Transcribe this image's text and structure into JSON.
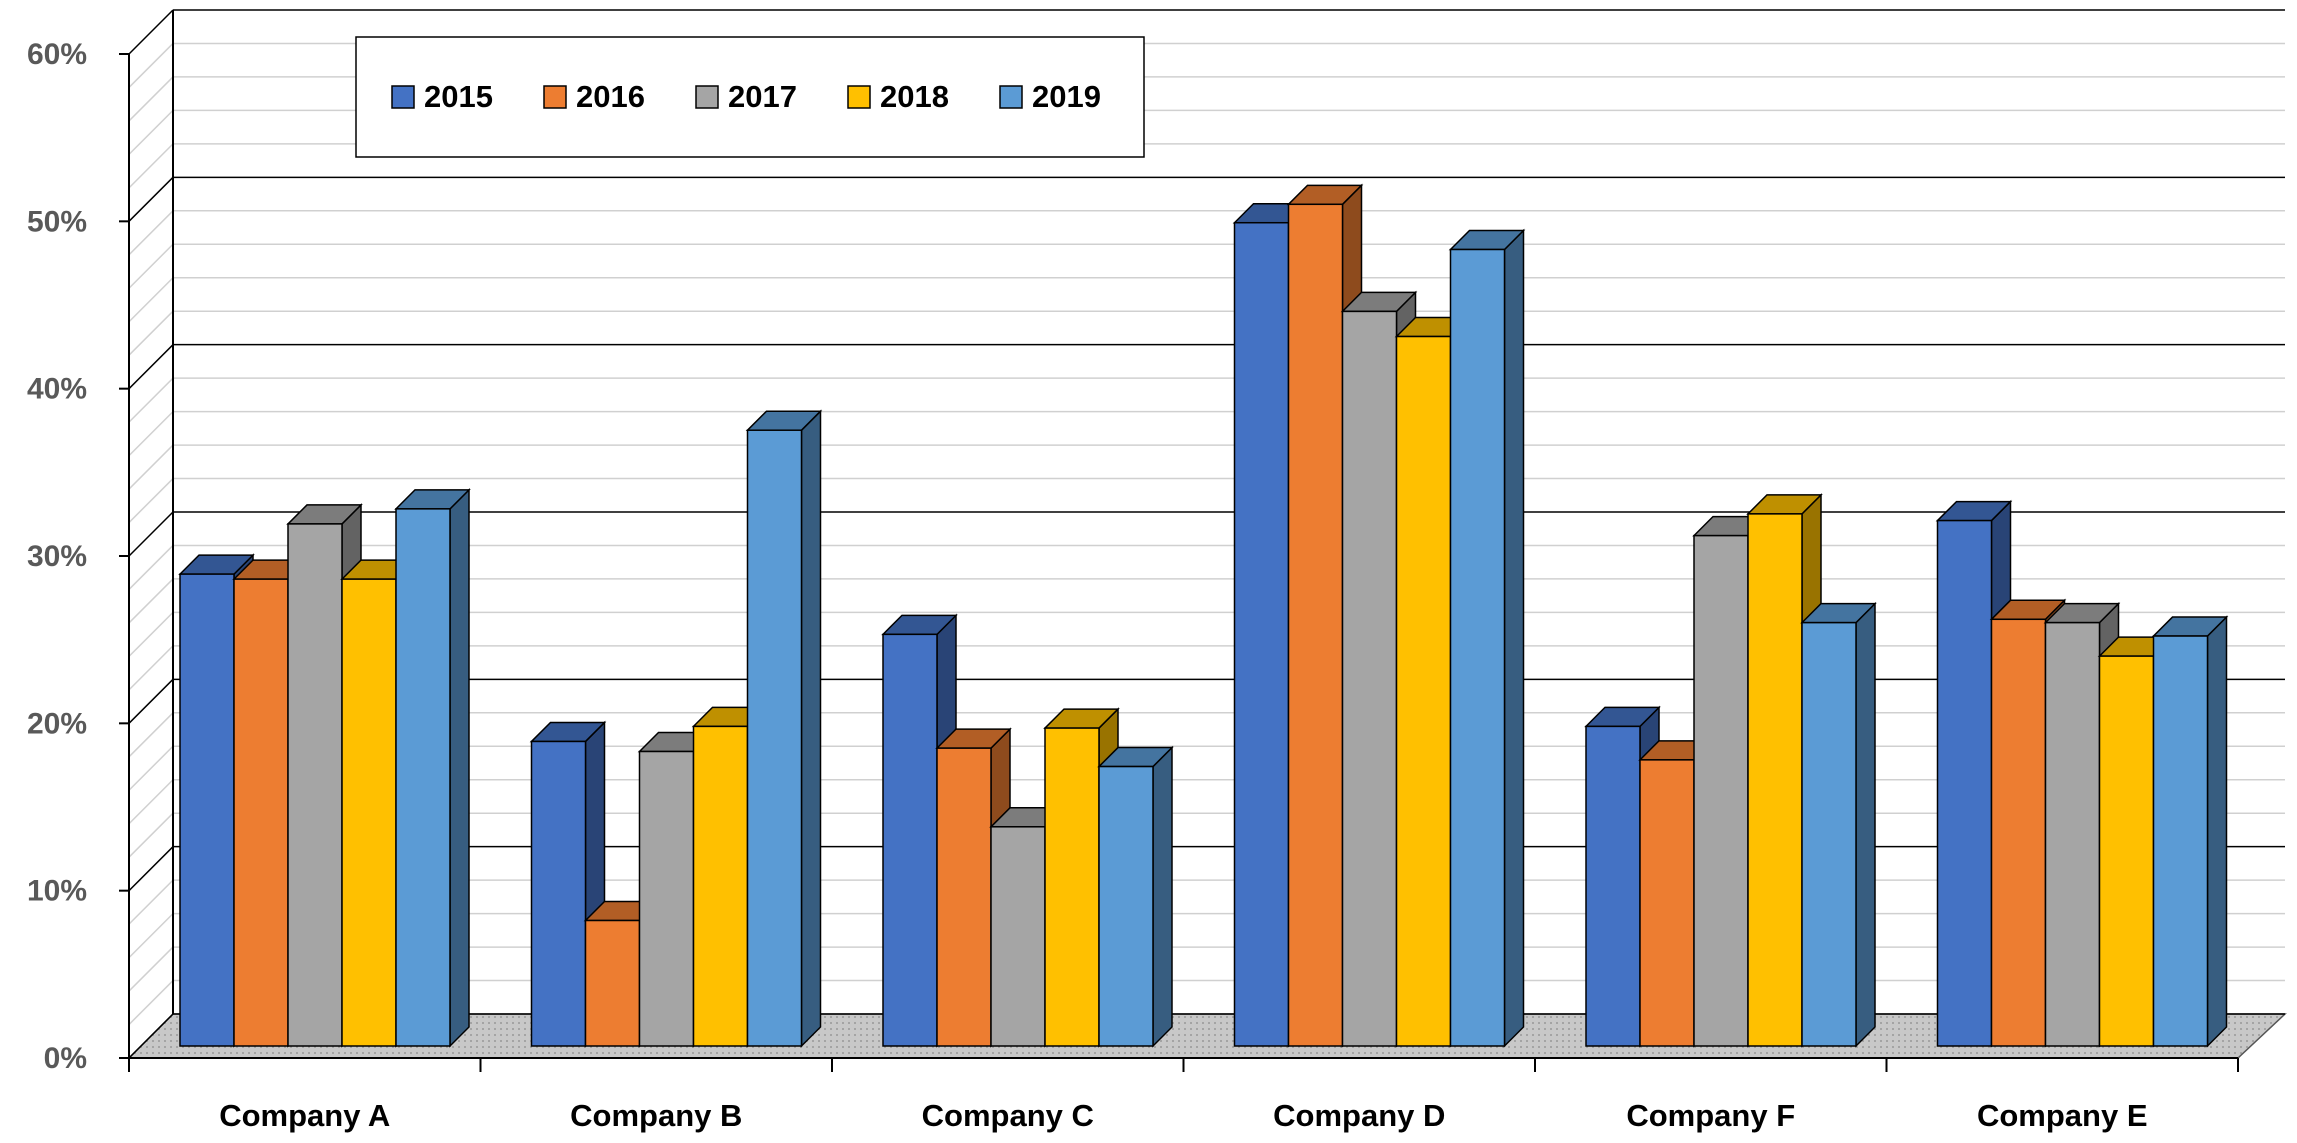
{
  "chart_data": {
    "type": "bar3d",
    "categories": [
      "Company A",
      "Company B",
      "Company C",
      "Company D",
      "Company F",
      "Company E"
    ],
    "series": [
      {
        "name": "2015",
        "color": "#4472c4",
        "values": [
          28.2,
          18.2,
          24.6,
          49.2,
          19.1,
          31.4
        ]
      },
      {
        "name": "2016",
        "color": "#ed7d31",
        "values": [
          27.9,
          7.5,
          17.8,
          50.3,
          17.1,
          25.5
        ]
      },
      {
        "name": "2017",
        "color": "#a5a5a5",
        "values": [
          31.2,
          17.6,
          13.1,
          43.9,
          30.5,
          25.3
        ]
      },
      {
        "name": "2018",
        "color": "#ffc000",
        "values": [
          27.9,
          19.1,
          19.0,
          42.4,
          31.8,
          23.3
        ]
      },
      {
        "name": "2019",
        "color": "#5b9bd5",
        "values": [
          32.1,
          36.8,
          16.7,
          47.6,
          25.3,
          24.5
        ]
      }
    ],
    "ylim": [
      0,
      60
    ],
    "yticks": [
      {
        "value": 0,
        "label": "0%"
      },
      {
        "value": 10,
        "label": "10%"
      },
      {
        "value": 20,
        "label": "20%"
      },
      {
        "value": 30,
        "label": "30%"
      },
      {
        "value": 40,
        "label": "40%"
      },
      {
        "value": 50,
        "label": "50%"
      },
      {
        "value": 60,
        "label": "60%"
      }
    ],
    "grid": true,
    "legend": "top-left"
  }
}
